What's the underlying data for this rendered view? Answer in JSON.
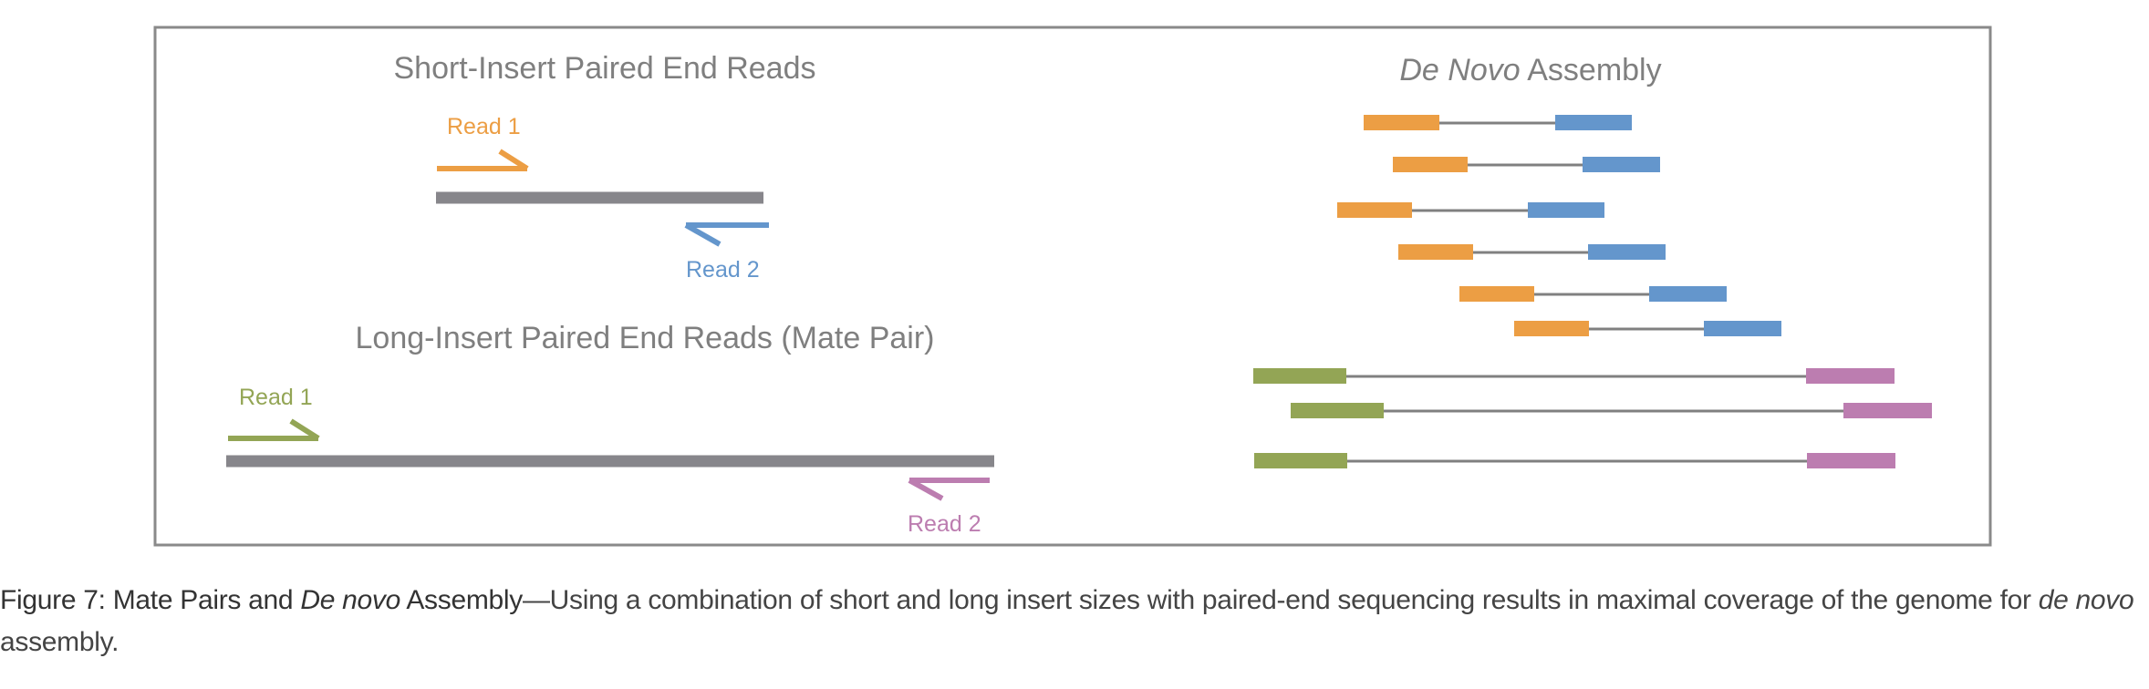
{
  "colors": {
    "read1_short": "#ec9e44",
    "read2_short": "#6496cc",
    "read1_long": "#93a555",
    "read2_long": "#bc7db0",
    "insert": "#87868b",
    "link": "#808080",
    "frame": "#8a8a8a"
  },
  "short_insert": {
    "title": "Short-Insert Paired End Reads",
    "read1_label": "Read 1",
    "read2_label": "Read 2"
  },
  "long_insert": {
    "title": "Long-Insert Paired End Reads (Mate Pair)",
    "read1_label": "Read 1",
    "read2_label": "Read 2"
  },
  "assembly": {
    "title_italic": "De Novo",
    "title_rest": " Assembly",
    "short_pairs": 6,
    "mate_pairs": 3
  },
  "caption": {
    "label_part1": "Figure 7: Mate Pairs and ",
    "label_italic": "De novo",
    "label_part2": " Assembly",
    "text_part1": "—Using a combination of short and long insert sizes with paired-end sequencing results in maximal coverage of the genome for ",
    "text_italic": "de novo",
    "text_part2": " assembly."
  }
}
